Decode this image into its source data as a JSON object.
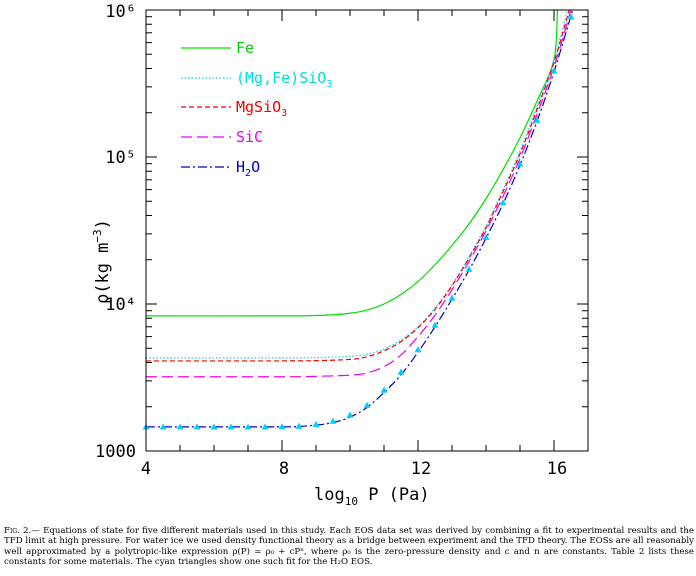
{
  "chart_data": {
    "type": "line",
    "xlabel": "log10 P (Pa)",
    "ylabel": "ρ(kg m⁻³)",
    "x_ticks": [
      "4",
      "8",
      "12",
      "16"
    ],
    "y_ticks": [
      "1000",
      "10⁴",
      "10⁵",
      "10⁶"
    ],
    "xlim": [
      4,
      17
    ],
    "ylim": [
      1000,
      1000000
    ],
    "y_scale": "log",
    "legend_position": "top-left",
    "series": [
      {
        "name": "Fe",
        "color": "#00dd00",
        "dash": "solid",
        "x": [
          4,
          8,
          9,
          9.5,
          10,
          10.5,
          11,
          11.5,
          12,
          12.5,
          13,
          13.5,
          14,
          14.5,
          15,
          15.5,
          16,
          16.1
        ],
        "y": [
          8300,
          8300,
          8350,
          8450,
          8650,
          9100,
          10000,
          11600,
          14200,
          18500,
          25000,
          35000,
          52000,
          82000,
          135000,
          240000,
          460000,
          1000000
        ]
      },
      {
        "name": "(Mg,Fe)SiO3",
        "color": "#00dddd",
        "dash": "dotted",
        "x": [
          4,
          8,
          9,
          10,
          10.5,
          11,
          11.5,
          12,
          12.5,
          13,
          13.5,
          14,
          14.5,
          15,
          15.5,
          16,
          16.4
        ],
        "y": [
          4300,
          4300,
          4320,
          4400,
          4550,
          4950,
          5700,
          7000,
          9400,
          13500,
          21000,
          34000,
          60000,
          110000,
          220000,
          460000,
          1000000
        ]
      },
      {
        "name": "MgSiO3",
        "color": "#ee0000",
        "dash": "dashed",
        "x": [
          4,
          8,
          9,
          10,
          10.5,
          11,
          11.5,
          12,
          12.5,
          13,
          13.5,
          14,
          14.5,
          15,
          15.5,
          16,
          16.45
        ],
        "y": [
          4100,
          4100,
          4120,
          4200,
          4380,
          4800,
          5550,
          6900,
          9200,
          13300,
          20500,
          33000,
          58000,
          105000,
          210000,
          440000,
          1000000
        ]
      },
      {
        "name": "SiC",
        "color": "#ee00ee",
        "dash": "long-dashed",
        "x": [
          4,
          8,
          9,
          10,
          10.5,
          11,
          11.5,
          12,
          12.5,
          13,
          13.5,
          14,
          14.5,
          15,
          15.5,
          16,
          16.5
        ],
        "y": [
          3200,
          3200,
          3220,
          3280,
          3400,
          3750,
          4500,
          6000,
          8400,
          12500,
          19500,
          31500,
          54000,
          98000,
          195000,
          410000,
          1000000
        ]
      },
      {
        "name": "H2O",
        "color": "#0000cc",
        "dash": "dash-dot",
        "x": [
          4,
          8,
          8.5,
          9,
          9.5,
          10,
          10.5,
          11,
          11.5,
          12,
          12.5,
          13,
          13.5,
          14,
          14.5,
          15,
          15.5,
          16,
          16.55
        ],
        "y": [
          1460,
          1460,
          1470,
          1500,
          1560,
          1700,
          1980,
          2500,
          3300,
          4700,
          7000,
          10800,
          17000,
          28000,
          48000,
          88000,
          175000,
          380000,
          1000000
        ]
      },
      {
        "name": "H2O fit",
        "color": "#00ccff",
        "marker": "triangle",
        "x": [
          4,
          4.5,
          5,
          5.5,
          6,
          6.5,
          7,
          7.5,
          8,
          8.5,
          9,
          9.5,
          10,
          10.5,
          11,
          11.5,
          12,
          12.5,
          13,
          13.5,
          14,
          14.5,
          15,
          15.5,
          16,
          16.5
        ],
        "y": [
          1460,
          1460,
          1460,
          1460,
          1460,
          1460,
          1460,
          1460,
          1465,
          1480,
          1520,
          1600,
          1760,
          2050,
          2600,
          3450,
          4900,
          7200,
          11000,
          17300,
          28500,
          49000,
          90000,
          178000,
          385000,
          900000
        ]
      }
    ]
  },
  "legend": {
    "fe": "Fe",
    "mgfe_a": "(Mg,Fe)SiO",
    "mgfe_sub": "3",
    "mg_a": "MgSiO",
    "mg_sub": "3",
    "sic": "SiC",
    "h2o_a": "H",
    "h2o_sub": "2",
    "h2o_b": "O"
  },
  "axis_labels": {
    "x_a": "log",
    "x_sub": "10",
    "x_b": " P (Pa)",
    "y_a": "ρ(kg m",
    "y_sup": "−3",
    "y_b": ")"
  },
  "caption": {
    "label": "Fig. 2.",
    "text": "— Equations of state for five different materials used in this study. Each EOS data set was derived by combining a fit to experimental results and the TFD limit at high pressure. For water ice we used density functional theory as a bridge between experiment and the TFD theory. The EOSs are all reasonably well approximated by a polytropic-like expression ρ(P) = ρ₀ + cPⁿ, where ρ₀ is the zero-pressure density and c and n are constants. Table 2 lists these constants for some materials. The cyan triangles show one such fit for the H₂O EOS."
  }
}
